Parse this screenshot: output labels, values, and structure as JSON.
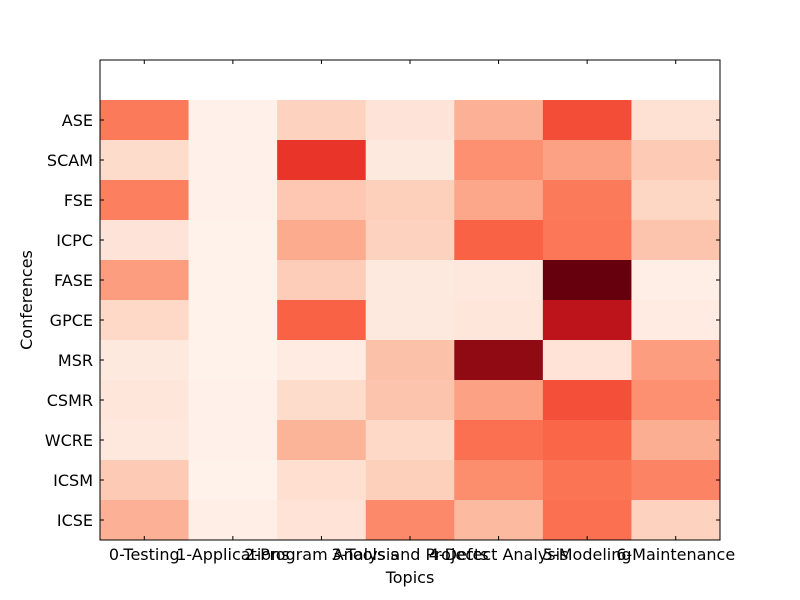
{
  "chart_data": {
    "type": "heatmap",
    "colormap": "Reds",
    "xlabel": "Topics",
    "ylabel": "Conferences",
    "x_categories": [
      "0-Testing",
      "1-Applications",
      "2-Program Analysis",
      "3-Tools and Projects",
      "4-Defect Analysis",
      "5-Modeling",
      "6-Maintenance"
    ],
    "y_categories": [
      "ASE",
      "SCAM",
      "FSE",
      "ICPC",
      "FASE",
      "GPCE",
      "MSR",
      "CSMR",
      "WCRE",
      "ICSM",
      "ICSE"
    ],
    "values": [
      [
        0.45,
        0.03,
        0.17,
        0.1,
        0.28,
        0.58,
        0.12
      ],
      [
        0.14,
        0.03,
        0.65,
        0.07,
        0.38,
        0.33,
        0.2
      ],
      [
        0.43,
        0.03,
        0.21,
        0.18,
        0.31,
        0.45,
        0.16
      ],
      [
        0.1,
        0.02,
        0.3,
        0.17,
        0.52,
        0.46,
        0.22
      ],
      [
        0.34,
        0.02,
        0.19,
        0.07,
        0.08,
        1.0,
        0.04
      ],
      [
        0.15,
        0.02,
        0.52,
        0.07,
        0.09,
        0.8,
        0.06
      ],
      [
        0.07,
        0.02,
        0.06,
        0.23,
        0.92,
        0.11,
        0.34
      ],
      [
        0.09,
        0.03,
        0.14,
        0.22,
        0.33,
        0.57,
        0.38
      ],
      [
        0.08,
        0.03,
        0.27,
        0.15,
        0.48,
        0.51,
        0.29
      ],
      [
        0.2,
        0.02,
        0.13,
        0.18,
        0.39,
        0.47,
        0.42
      ],
      [
        0.28,
        0.04,
        0.11,
        0.4,
        0.25,
        0.48,
        0.17
      ]
    ],
    "value_range": [
      0,
      1
    ],
    "header_band_row": true,
    "colorbar": false,
    "grid": false
  }
}
